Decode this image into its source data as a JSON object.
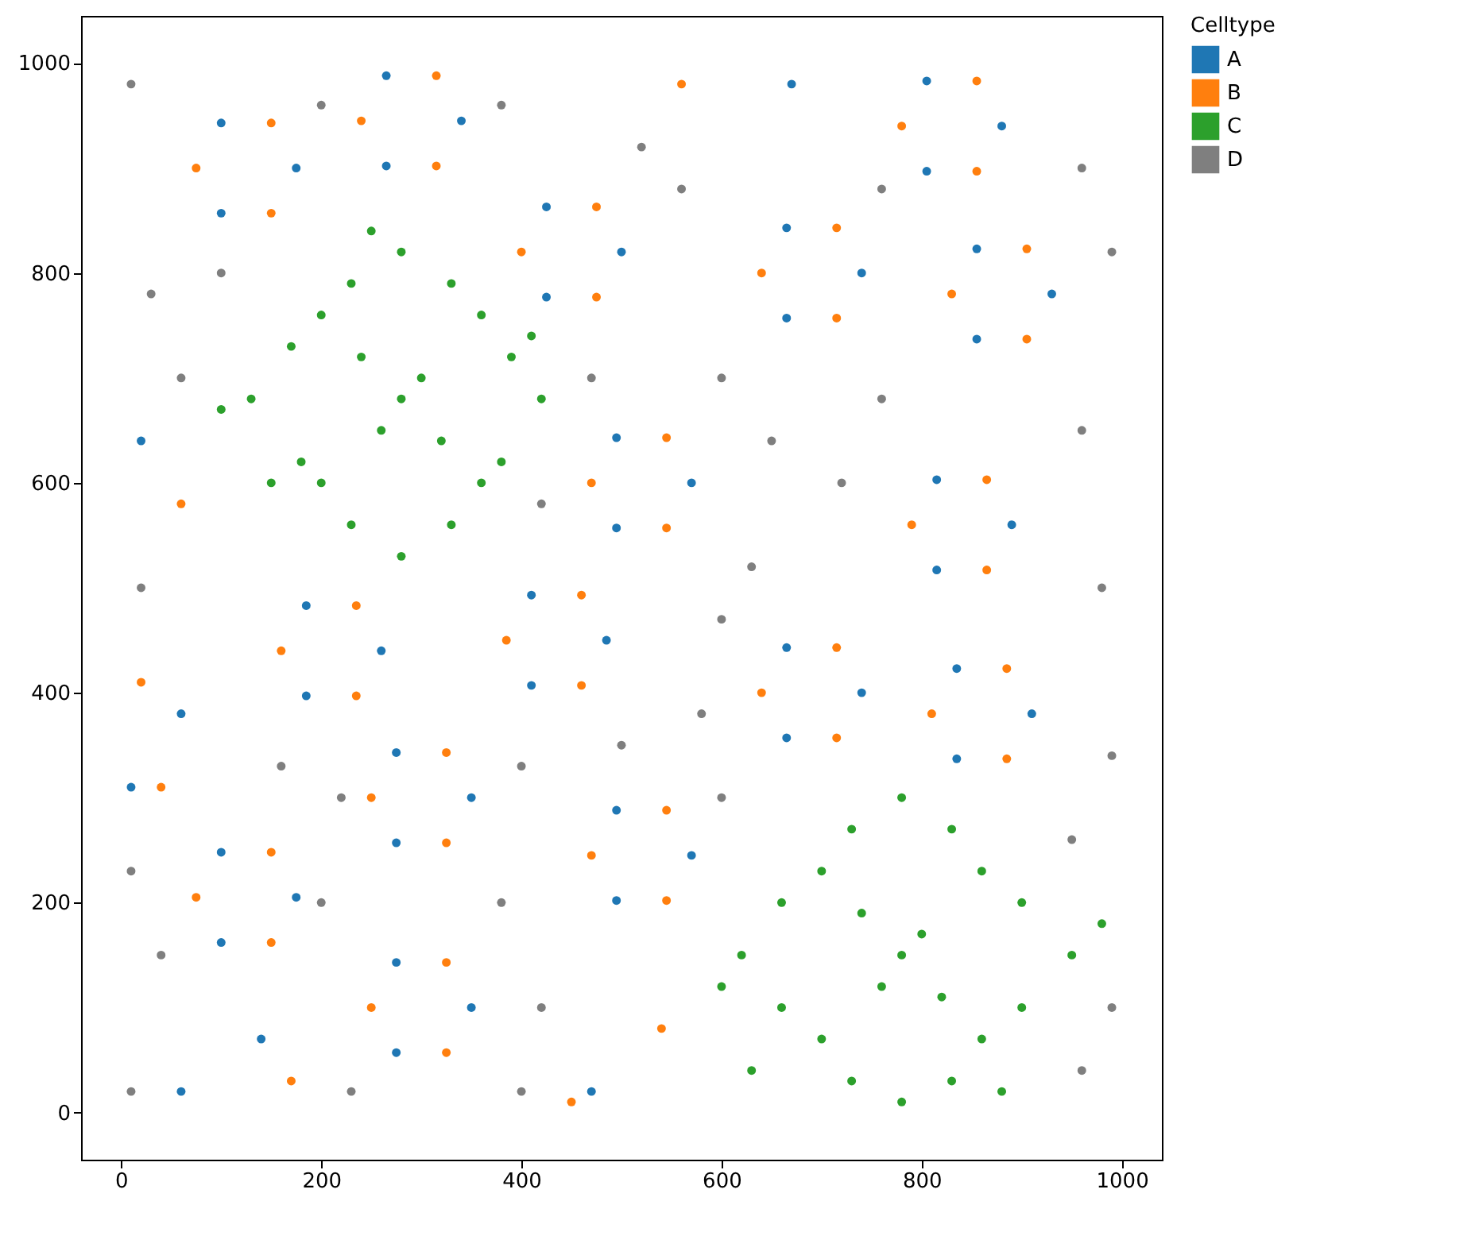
{
  "chart_data": {
    "type": "scatter",
    "legend_title": "Celltype",
    "legend": "right",
    "grid": false,
    "marker": "circle",
    "xlim": [
      -40,
      1040
    ],
    "ylim": [
      -45,
      1045
    ],
    "xticks": [
      0,
      200,
      400,
      600,
      800,
      1000
    ],
    "yticks": [
      0,
      200,
      400,
      600,
      800,
      1000
    ],
    "series": [
      {
        "name": "A",
        "color": "#1f77b4",
        "x": [
          175,
          100,
          100,
          340,
          265,
          265,
          500,
          425,
          425,
          740,
          665,
          665,
          880,
          805,
          805,
          930,
          855,
          855,
          570,
          495,
          495,
          890,
          815,
          815,
          260,
          185,
          185,
          485,
          410,
          410,
          740,
          665,
          665,
          910,
          835,
          835,
          350,
          275,
          275,
          570,
          495,
          495,
          175,
          100,
          100,
          350,
          275,
          275,
          20,
          60,
          140,
          670,
          470,
          60,
          10
        ],
        "values": [
          900,
          943,
          857,
          945,
          988,
          902,
          820,
          863,
          777,
          800,
          843,
          757,
          940,
          983,
          897,
          780,
          823,
          737,
          600,
          643,
          557,
          560,
          603,
          517,
          440,
          483,
          397,
          450,
          493,
          407,
          400,
          443,
          357,
          380,
          423,
          337,
          300,
          343,
          257,
          245,
          288,
          202,
          205,
          248,
          162,
          100,
          143,
          57,
          640,
          20,
          70,
          980,
          20,
          380,
          310
        ]
      },
      {
        "name": "B",
        "color": "#ff7f0e",
        "x": [
          150,
          75,
          150,
          315,
          240,
          315,
          475,
          400,
          475,
          715,
          640,
          715,
          855,
          780,
          855,
          905,
          830,
          905,
          545,
          470,
          545,
          865,
          790,
          865,
          235,
          160,
          235,
          460,
          385,
          460,
          715,
          640,
          715,
          885,
          810,
          885,
          325,
          250,
          325,
          545,
          470,
          545,
          150,
          75,
          150,
          325,
          250,
          325,
          60,
          20,
          170,
          560,
          450,
          40,
          540
        ],
        "values": [
          943,
          900,
          857,
          988,
          945,
          902,
          863,
          820,
          777,
          843,
          800,
          757,
          983,
          940,
          897,
          823,
          780,
          737,
          643,
          600,
          557,
          603,
          560,
          517,
          483,
          440,
          397,
          493,
          450,
          407,
          443,
          400,
          357,
          423,
          380,
          337,
          343,
          300,
          257,
          288,
          245,
          202,
          248,
          205,
          162,
          143,
          100,
          57,
          580,
          410,
          30,
          980,
          10,
          310,
          80
        ]
      },
      {
        "name": "C",
        "color": "#2ca02c",
        "x": [
          280,
          200,
          360,
          200,
          360,
          280,
          280,
          130,
          420,
          240,
          320,
          170,
          390,
          180,
          380,
          230,
          330,
          230,
          330,
          300,
          260,
          150,
          410,
          100,
          250,
          780,
          700,
          860,
          700,
          860,
          780,
          780,
          620,
          950,
          740,
          820,
          660,
          900,
          660,
          900,
          730,
          830,
          730,
          830,
          800,
          760,
          600,
          980,
          630,
          880
        ],
        "values": [
          680,
          760,
          760,
          600,
          600,
          820,
          530,
          680,
          680,
          720,
          640,
          730,
          720,
          620,
          620,
          790,
          790,
          560,
          560,
          700,
          650,
          600,
          740,
          670,
          840,
          150,
          230,
          230,
          70,
          70,
          300,
          10,
          150,
          150,
          190,
          110,
          200,
          200,
          100,
          100,
          270,
          270,
          30,
          30,
          170,
          120,
          120,
          180,
          40,
          20
        ]
      },
      {
        "name": "D",
        "color": "#7f7f7f",
        "x": [
          10,
          60,
          20,
          40,
          10,
          200,
          380,
          560,
          760,
          960,
          990,
          960,
          980,
          990,
          950,
          990,
          600,
          650,
          720,
          600,
          580,
          420,
          470,
          500,
          400,
          380,
          420,
          220,
          200,
          160,
          400,
          600,
          520,
          630,
          760,
          960,
          230,
          10,
          30,
          100
        ],
        "values": [
          980,
          700,
          500,
          150,
          20,
          960,
          960,
          880,
          880,
          900,
          820,
          650,
          500,
          340,
          260,
          100,
          700,
          640,
          600,
          470,
          380,
          580,
          700,
          350,
          330,
          200,
          100,
          300,
          200,
          330,
          20,
          300,
          920,
          520,
          680,
          40,
          20,
          230,
          780,
          800
        ]
      }
    ]
  }
}
